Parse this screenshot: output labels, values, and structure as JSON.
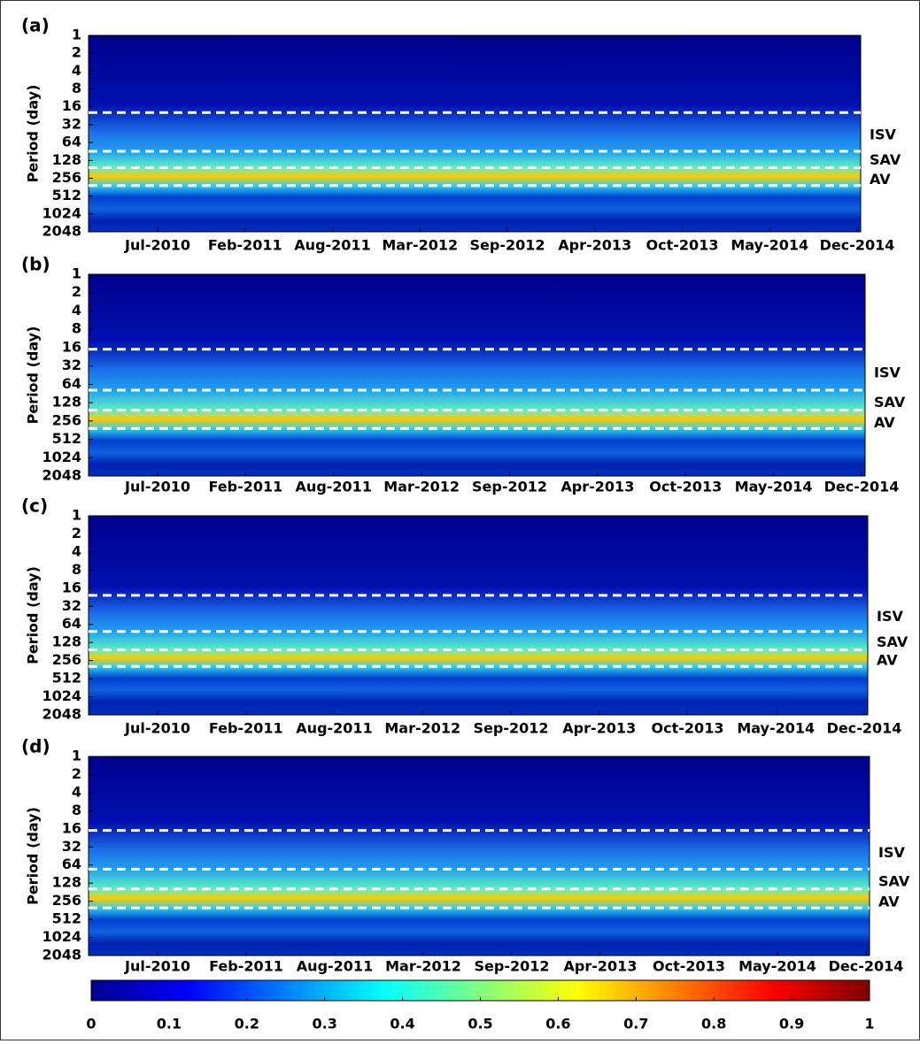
{
  "chart_data": [
    {
      "type": "heatmap",
      "panel_label": "(a)",
      "ylabel": "Period (day)",
      "ylim": [
        1,
        2048
      ],
      "log_base": 2,
      "y_inverted": true,
      "yticks": [
        1,
        2,
        4,
        8,
        16,
        32,
        64,
        128,
        256,
        512,
        1024,
        2048
      ],
      "xticks": [
        "Jul-2010",
        "Feb-2011",
        "Aug-2011",
        "Mar-2012",
        "Sep-2012",
        "Apr-2013",
        "Oct-2013",
        "May-2014",
        "Dec-2014"
      ],
      "band_edges": [
        20,
        90,
        170,
        340
      ],
      "bands": [
        "ISV",
        "SAV",
        "AV"
      ]
    },
    {
      "type": "heatmap",
      "panel_label": "(b)",
      "ylabel": "Period (day)",
      "ylim": [
        1,
        2048
      ],
      "log_base": 2,
      "y_inverted": true,
      "yticks": [
        1,
        2,
        4,
        8,
        16,
        32,
        64,
        128,
        256,
        512,
        1024,
        2048
      ],
      "xticks": [
        "Jul-2010",
        "Feb-2011",
        "Aug-2011",
        "Mar-2012",
        "Sep-2012",
        "Apr-2013",
        "Oct-2013",
        "May-2014",
        "Dec-2014"
      ],
      "band_edges": [
        17,
        80,
        170,
        340
      ],
      "bands": [
        "ISV",
        "SAV",
        "AV"
      ]
    },
    {
      "type": "heatmap",
      "panel_label": "(c)",
      "ylabel": "Period (day)",
      "ylim": [
        1,
        2048
      ],
      "log_base": 2,
      "y_inverted": true,
      "yticks": [
        1,
        2,
        4,
        8,
        16,
        32,
        64,
        128,
        256,
        512,
        1024,
        2048
      ],
      "xticks": [
        "Jul-2010",
        "Feb-2011",
        "Aug-2011",
        "Mar-2012",
        "Sep-2012",
        "Apr-2013",
        "Oct-2013",
        "May-2014",
        "Dec-2014"
      ],
      "band_edges": [
        21,
        84,
        170,
        320
      ],
      "bands": [
        "ISV",
        "SAV",
        "AV"
      ]
    },
    {
      "type": "heatmap",
      "panel_label": "(d)",
      "ylabel": "Period (day)",
      "ylim": [
        1,
        2048
      ],
      "log_base": 2,
      "y_inverted": true,
      "yticks": [
        1,
        2,
        4,
        8,
        16,
        32,
        64,
        128,
        256,
        512,
        1024,
        2048
      ],
      "xticks": [
        "Jul-2010",
        "Feb-2011",
        "Aug-2011",
        "Mar-2012",
        "Sep-2012",
        "Apr-2013",
        "Oct-2013",
        "May-2014",
        "Dec-2014"
      ],
      "band_edges": [
        17,
        75,
        160,
        330
      ],
      "bands": [
        "ISV",
        "SAV",
        "AV"
      ]
    }
  ],
  "colorbar": {
    "colormap": "jet",
    "lim": [
      0,
      1
    ],
    "ticks": [
      0,
      0.1,
      0.2,
      0.3,
      0.4,
      0.5,
      0.6,
      0.7,
      0.8,
      0.9,
      1
    ]
  }
}
